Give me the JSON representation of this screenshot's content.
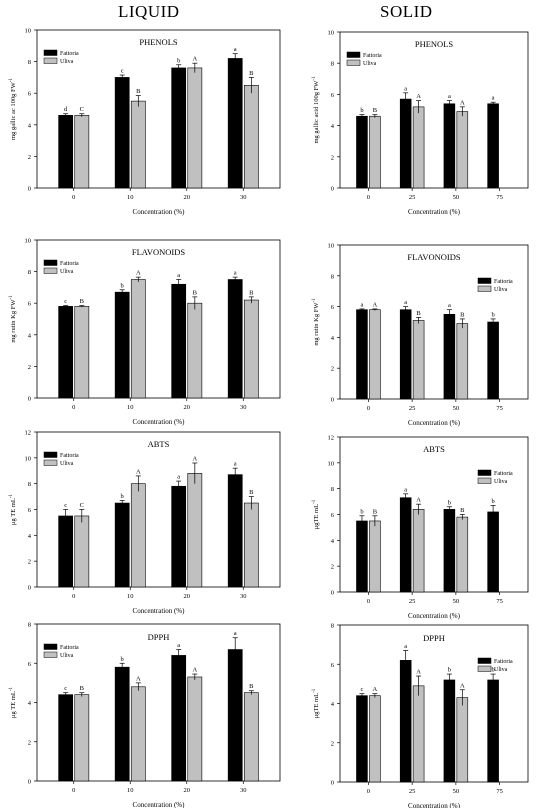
{
  "headers": {
    "left": "LIQUID",
    "right": "SOLID"
  },
  "colors": {
    "Fattoria": "#000000",
    "Uliva": "#c0c0c0"
  },
  "chart_data": [
    {
      "type": "bar",
      "column": "left",
      "title": "PHENOLS",
      "xlabel": "Concentration (%)",
      "ylabel": "mg gallic ac 100g FW",
      "ylim": [
        0,
        10
      ],
      "yticks": [
        0,
        2,
        4,
        6,
        8,
        10
      ],
      "categories": [
        "0",
        "10",
        "20",
        "30"
      ],
      "legend": "top-left",
      "series": [
        {
          "name": "Fattoria",
          "values": [
            4.6,
            7.0,
            7.6,
            8.2
          ],
          "errors": [
            0.1,
            0.15,
            0.2,
            0.3
          ],
          "letters": [
            "d",
            "c",
            "b",
            "a"
          ]
        },
        {
          "name": "Uliva",
          "values": [
            4.6,
            5.5,
            7.6,
            6.5
          ],
          "errors": [
            0.1,
            0.35,
            0.3,
            0.5
          ],
          "letters": [
            "C",
            "B",
            "A",
            "B"
          ]
        }
      ]
    },
    {
      "type": "bar",
      "column": "right",
      "title": "PHENOLS",
      "xlabel": "Concentration (%)",
      "ylabel": "mg gallic acid 100g FW",
      "ylim": [
        0,
        10
      ],
      "yticks": [
        0,
        2,
        4,
        6,
        8,
        10
      ],
      "categories": [
        "0",
        "25",
        "50",
        "75"
      ],
      "legend": "top-left",
      "series": [
        {
          "name": "Fattoria",
          "values": [
            4.6,
            5.7,
            5.4,
            5.4
          ],
          "errors": [
            0.1,
            0.4,
            0.2,
            0.1
          ],
          "letters": [
            "b",
            "a",
            "a",
            "a"
          ]
        },
        {
          "name": "Uliva",
          "values": [
            4.6,
            5.2,
            4.9,
            null
          ],
          "errors": [
            0.1,
            0.4,
            0.3,
            null
          ],
          "letters": [
            "B",
            "A",
            "A",
            ""
          ]
        }
      ]
    },
    {
      "type": "bar",
      "column": "left",
      "title": "FLAVONOIDS",
      "xlabel": "Concentration (%)",
      "ylabel": "mg rutin Kg FW",
      "ylim": [
        0,
        10
      ],
      "yticks": [
        0,
        2,
        4,
        6,
        8,
        10
      ],
      "categories": [
        "0",
        "10",
        "20",
        "30"
      ],
      "legend": "top-left",
      "series": [
        {
          "name": "Fattoria",
          "values": [
            5.8,
            6.7,
            7.2,
            7.5
          ],
          "errors": [
            0.05,
            0.15,
            0.3,
            0.15
          ],
          "letters": [
            "c",
            "b",
            "a",
            "a"
          ]
        },
        {
          "name": "Uliva",
          "values": [
            5.8,
            7.5,
            6.0,
            6.2
          ],
          "errors": [
            0.05,
            0.15,
            0.4,
            0.2
          ],
          "letters": [
            "B",
            "A",
            "B",
            "B"
          ]
        }
      ]
    },
    {
      "type": "bar",
      "column": "right",
      "title": "FLAVONOIDS",
      "xlabel": "Concentration (%)",
      "ylabel": "mg rutin Kg FW",
      "ylim": [
        0,
        10
      ],
      "yticks": [
        0,
        2,
        4,
        6,
        8,
        10
      ],
      "categories": [
        "0",
        "25",
        "50",
        "75"
      ],
      "legend": "top-right",
      "series": [
        {
          "name": "Fattoria",
          "values": [
            5.8,
            5.8,
            5.5,
            5.0
          ],
          "errors": [
            0.05,
            0.2,
            0.3,
            0.2
          ],
          "letters": [
            "a",
            "a",
            "a",
            "b"
          ]
        },
        {
          "name": "Uliva",
          "values": [
            5.8,
            5.1,
            4.9,
            null
          ],
          "errors": [
            0.05,
            0.2,
            0.3,
            null
          ],
          "letters": [
            "A",
            "B",
            "B",
            ""
          ]
        }
      ]
    },
    {
      "type": "bar",
      "column": "left",
      "title": "ABTS",
      "xlabel": "Concentration (%)",
      "ylabel": "μg TE mL",
      "ylim": [
        0,
        12
      ],
      "yticks": [
        0,
        2,
        4,
        6,
        8,
        10,
        12
      ],
      "categories": [
        "0",
        "10",
        "20",
        "30"
      ],
      "legend": "top-left",
      "series": [
        {
          "name": "Fattoria",
          "values": [
            5.5,
            6.5,
            7.8,
            8.7
          ],
          "errors": [
            0.5,
            0.2,
            0.4,
            0.5
          ],
          "letters": [
            "c",
            "b",
            "a",
            "a"
          ]
        },
        {
          "name": "Uliva",
          "values": [
            5.5,
            8.0,
            8.8,
            6.5
          ],
          "errors": [
            0.5,
            0.6,
            0.8,
            0.5
          ],
          "letters": [
            "C",
            "A",
            "A",
            "B"
          ]
        }
      ]
    },
    {
      "type": "bar",
      "column": "right",
      "title": "ABTS",
      "xlabel": "Concentration (%)",
      "ylabel": "μgTE mL",
      "ylim": [
        0,
        12
      ],
      "yticks": [
        0,
        2,
        4,
        6,
        8,
        10,
        12
      ],
      "categories": [
        "0",
        "25",
        "50",
        "75"
      ],
      "legend": "top-right",
      "series": [
        {
          "name": "Fattoria",
          "values": [
            5.5,
            7.3,
            6.4,
            6.2
          ],
          "errors": [
            0.4,
            0.3,
            0.2,
            0.5
          ],
          "letters": [
            "b",
            "a",
            "b",
            "b"
          ]
        },
        {
          "name": "Uliva",
          "values": [
            5.5,
            6.4,
            5.8,
            null
          ],
          "errors": [
            0.4,
            0.4,
            0.2,
            null
          ],
          "letters": [
            "B",
            "A",
            "B",
            ""
          ]
        }
      ]
    },
    {
      "type": "bar",
      "column": "left",
      "title": "DPPH",
      "xlabel": "Concentration (%)",
      "ylabel": "μg TE mL",
      "ylim": [
        0,
        8
      ],
      "yticks": [
        0,
        2,
        4,
        6,
        8
      ],
      "categories": [
        "0",
        "10",
        "20",
        "30"
      ],
      "legend": "top-left",
      "series": [
        {
          "name": "Fattoria",
          "values": [
            4.4,
            5.8,
            6.4,
            6.7
          ],
          "errors": [
            0.1,
            0.2,
            0.3,
            0.6
          ],
          "letters": [
            "c",
            "b",
            "a",
            "a"
          ]
        },
        {
          "name": "Uliva",
          "values": [
            4.4,
            4.8,
            5.3,
            4.5
          ],
          "errors": [
            0.1,
            0.2,
            0.15,
            0.1
          ],
          "letters": [
            "B",
            "A",
            "A",
            "B"
          ]
        }
      ]
    },
    {
      "type": "bar",
      "column": "right",
      "title": "DPPH",
      "xlabel": "Concentration (%)",
      "ylabel": "μgTE mL",
      "ylim": [
        0,
        8
      ],
      "yticks": [
        0,
        2,
        4,
        6,
        8
      ],
      "categories": [
        "0",
        "25",
        "50",
        "75"
      ],
      "legend": "top-right",
      "series": [
        {
          "name": "Fattoria",
          "values": [
            4.4,
            6.2,
            5.2,
            5.2
          ],
          "errors": [
            0.1,
            0.5,
            0.3,
            0.3
          ],
          "letters": [
            "c",
            "a",
            "b",
            "b"
          ]
        },
        {
          "name": "Uliva",
          "values": [
            4.4,
            4.9,
            4.3,
            null
          ],
          "errors": [
            0.1,
            0.5,
            0.4,
            null
          ],
          "letters": [
            "A",
            "A",
            "A",
            ""
          ]
        }
      ]
    }
  ]
}
